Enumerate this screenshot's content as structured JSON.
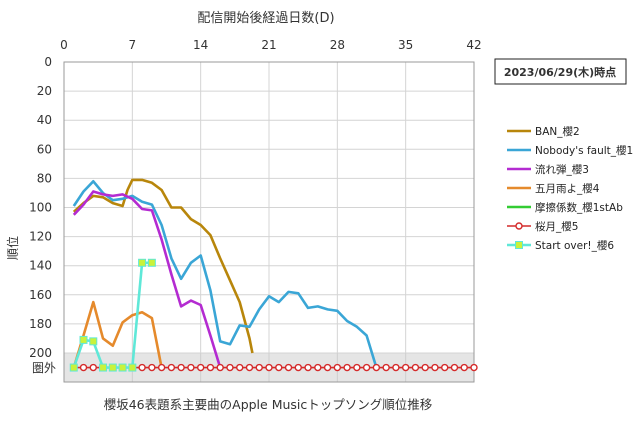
{
  "chart_data": {
    "type": "line",
    "title": "櫻坂46表題系主要曲のApple Musicトップソング順位推移",
    "xlabel": "配信開始後経過日数(D)",
    "ylabel": "順位",
    "date_label": "2023/06/29(木)時点",
    "out_label": "圏外",
    "xlim": [
      0,
      42
    ],
    "ylim": [
      0,
      210
    ],
    "y_inverted": true,
    "x_ticks": [
      "0",
      "7",
      "14",
      "21",
      "28",
      "35",
      "42"
    ],
    "y_ticks": [
      "0",
      "20",
      "40",
      "60",
      "80",
      "100",
      "120",
      "140",
      "160",
      "180",
      "200"
    ],
    "x_tick_values": [
      0,
      7,
      14,
      21,
      28,
      35,
      42
    ],
    "y_tick_values": [
      0,
      20,
      40,
      60,
      80,
      100,
      120,
      140,
      160,
      180,
      200
    ],
    "out_of_chart_value": 210,
    "grid": true,
    "legend_position": "right",
    "series": [
      {
        "name": "BAN_櫻2",
        "color": "#B8860B",
        "marker": "none",
        "points": [
          [
            1,
            103
          ],
          [
            2,
            97
          ],
          [
            3,
            92
          ],
          [
            4,
            93
          ],
          [
            5,
            97
          ],
          [
            6,
            99
          ],
          [
            6.5,
            88
          ],
          [
            7,
            81
          ],
          [
            8,
            81
          ],
          [
            9,
            83
          ],
          [
            10,
            88
          ],
          [
            11,
            100
          ],
          [
            12,
            100
          ],
          [
            13,
            108
          ],
          [
            14,
            112
          ],
          [
            15,
            119
          ],
          [
            16,
            135
          ],
          [
            17,
            150
          ],
          [
            18,
            165
          ],
          [
            19,
            190
          ],
          [
            19.3,
            200
          ]
        ]
      },
      {
        "name": "Nobody's fault_櫻1",
        "color": "#3AA6D6",
        "marker": "none",
        "points": [
          [
            1,
            99
          ],
          [
            2,
            89
          ],
          [
            3,
            82
          ],
          [
            4,
            90
          ],
          [
            5,
            95
          ],
          [
            6,
            94
          ],
          [
            7,
            92
          ],
          [
            8,
            96
          ],
          [
            9,
            98
          ],
          [
            10,
            112
          ],
          [
            11,
            135
          ],
          [
            12,
            149
          ],
          [
            13,
            138
          ],
          [
            14,
            133
          ],
          [
            15,
            157
          ],
          [
            16,
            192
          ],
          [
            17,
            194
          ],
          [
            18,
            181
          ],
          [
            19,
            182
          ],
          [
            20,
            170
          ],
          [
            21,
            161
          ],
          [
            22,
            165
          ],
          [
            23,
            158
          ],
          [
            24,
            159
          ],
          [
            25,
            169
          ],
          [
            26,
            168
          ],
          [
            27,
            170
          ],
          [
            28,
            171
          ],
          [
            29,
            178
          ],
          [
            30,
            182
          ],
          [
            31,
            188
          ],
          [
            32,
            210
          ]
        ]
      },
      {
        "name": "流れ弾_櫻3",
        "color": "#B42BD1",
        "marker": "none",
        "points": [
          [
            1,
            105
          ],
          [
            2,
            98
          ],
          [
            3,
            89
          ],
          [
            4,
            91
          ],
          [
            5,
            92
          ],
          [
            6,
            91
          ],
          [
            7,
            94
          ],
          [
            8,
            101
          ],
          [
            9,
            102
          ],
          [
            10,
            122
          ],
          [
            11,
            146
          ],
          [
            12,
            168
          ],
          [
            13,
            164
          ],
          [
            14,
            167
          ],
          [
            15,
            188
          ],
          [
            16,
            210
          ]
        ]
      },
      {
        "name": "五月雨よ_櫻4",
        "color": "#E58A2C",
        "marker": "none",
        "points": [
          [
            1,
            210
          ],
          [
            2,
            188
          ],
          [
            3,
            165
          ],
          [
            4,
            190
          ],
          [
            5,
            195
          ],
          [
            6,
            179
          ],
          [
            7,
            174
          ],
          [
            8,
            172
          ],
          [
            9,
            176
          ],
          [
            10,
            210
          ]
        ]
      },
      {
        "name": "摩擦係数_櫻1stAb",
        "color": "#33CC33",
        "marker": "none",
        "points": []
      },
      {
        "name": "桜月_櫻5",
        "color": "#D42A2A",
        "marker": "circle",
        "points": [
          [
            1,
            210
          ],
          [
            2,
            210
          ],
          [
            3,
            210
          ],
          [
            4,
            210
          ],
          [
            5,
            210
          ],
          [
            6,
            210
          ],
          [
            7,
            210
          ],
          [
            8,
            210
          ],
          [
            9,
            210
          ],
          [
            10,
            210
          ],
          [
            11,
            210
          ],
          [
            12,
            210
          ],
          [
            13,
            210
          ],
          [
            14,
            210
          ],
          [
            15,
            210
          ],
          [
            16,
            210
          ],
          [
            17,
            210
          ],
          [
            18,
            210
          ],
          [
            19,
            210
          ],
          [
            20,
            210
          ],
          [
            21,
            210
          ],
          [
            22,
            210
          ],
          [
            23,
            210
          ],
          [
            24,
            210
          ],
          [
            25,
            210
          ],
          [
            26,
            210
          ],
          [
            27,
            210
          ],
          [
            28,
            210
          ],
          [
            29,
            210
          ],
          [
            30,
            210
          ],
          [
            31,
            210
          ],
          [
            32,
            210
          ],
          [
            33,
            210
          ],
          [
            34,
            210
          ],
          [
            35,
            210
          ],
          [
            36,
            210
          ],
          [
            37,
            210
          ],
          [
            38,
            210
          ],
          [
            39,
            210
          ],
          [
            40,
            210
          ],
          [
            41,
            210
          ],
          [
            42,
            210
          ]
        ]
      },
      {
        "name": "Start over!_櫻6",
        "color": "#5FE8D8",
        "marker": "square",
        "marker_color": "#C9F23C",
        "points": [
          [
            1,
            210
          ],
          [
            2,
            191
          ],
          [
            3,
            192
          ],
          [
            4,
            210
          ],
          [
            5,
            210
          ],
          [
            6,
            210
          ],
          [
            7,
            210
          ],
          [
            8,
            138
          ],
          [
            9,
            138
          ]
        ]
      }
    ]
  }
}
